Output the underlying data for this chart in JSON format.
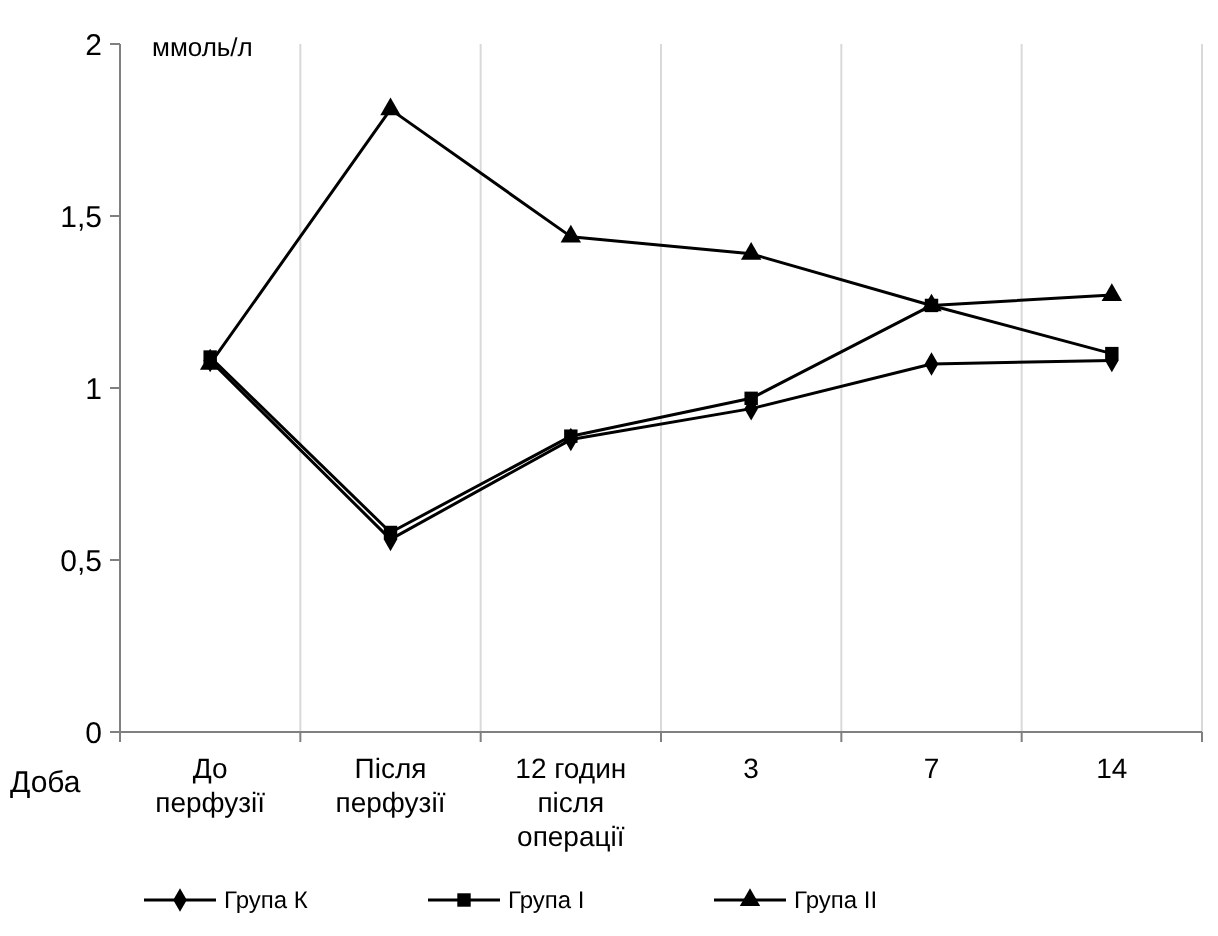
{
  "chart_data": {
    "type": "line",
    "ylabel": "ммоль/л",
    "xlabel": "Доба",
    "categories": [
      "До\nперфузії",
      "Після\nперфузії",
      "12 годин\nпісля\nоперації",
      "3",
      "7",
      "14"
    ],
    "ylim": [
      0,
      2
    ],
    "yticks": [
      0,
      {
        "value": 0.5,
        "label": "0,5"
      },
      1,
      {
        "value": 1.5,
        "label": "1,5"
      },
      2
    ],
    "grid": "x",
    "legend": "bottom",
    "series": [
      {
        "name": "Група К",
        "color": "#000000",
        "marker": "diamond",
        "values": [
          1.08,
          0.56,
          0.85,
          0.94,
          1.07,
          1.08
        ]
      },
      {
        "name": "Група І",
        "color": "#000000",
        "marker": "square",
        "values": [
          1.09,
          0.58,
          0.86,
          0.97,
          1.24,
          1.1
        ]
      },
      {
        "name": "Група ІІ",
        "color": "#000000",
        "marker": "triangle",
        "values": [
          1.07,
          1.81,
          1.44,
          1.39,
          1.24,
          1.27
        ]
      }
    ]
  }
}
